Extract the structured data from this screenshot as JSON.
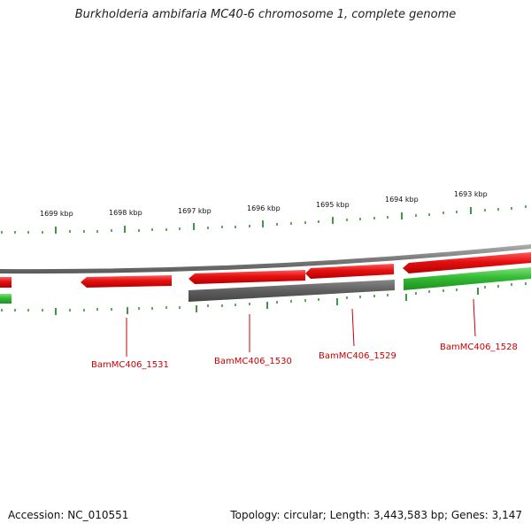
{
  "title": "Burkholderia ambifaria MC40-6 chromosome 1, complete genome",
  "footer": {
    "accession": "Accession: NC_010551",
    "summary": "Topology: circular; Length: 3,443,583 bp; Genes: 3,147"
  },
  "ruler_labels": [
    "1699 kbp",
    "1698 kbp",
    "1697 kbp",
    "1696 kbp",
    "1695 kbp",
    "1694 kbp",
    "1693 kbp"
  ],
  "gene_labels": [
    "BamMC406_1531",
    "BamMC406_1530",
    "BamMC406_1529",
    "BamMC406_1528"
  ],
  "colors": {
    "forward_gene": "#e41414",
    "reverse_gene": "#3fc23f",
    "other_feature": "#666666",
    "backbone": "#8a8a8a",
    "tick": "#2e8b2e",
    "label": "#cc0000"
  }
}
